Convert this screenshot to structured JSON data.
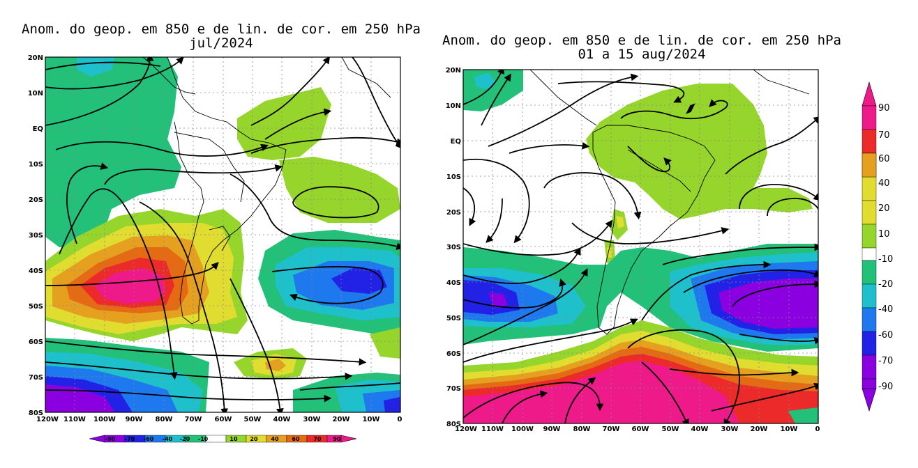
{
  "left_map": {
    "title_line1": "Anom. do geop. em 850 e de lin. de cor. em 250 hPa",
    "title_line2": "jul/2024",
    "lat_labels": [
      "20N",
      "10N",
      "EQ",
      "10S",
      "20S",
      "30S",
      "40S",
      "50S",
      "60S",
      "70S",
      "80S"
    ],
    "lon_labels": [
      "120W",
      "110W",
      "100W",
      "90W",
      "80W",
      "70W",
      "60W",
      "50W",
      "40W",
      "30W",
      "20W",
      "10W",
      "0"
    ],
    "colorbar_labels": [
      "-90",
      "-70",
      "-60",
      "-40",
      "-20",
      "-10",
      "10",
      "20",
      "40",
      "60",
      "70",
      "90"
    ]
  },
  "right_map": {
    "title_line1": "Anom. do geop. em 850 e de lin. de cor. em 250 hPa",
    "title_line2": "01 a 15 aug/2024",
    "lat_labels": [
      "20N",
      "10N",
      "EQ",
      "10S",
      "20S",
      "30S",
      "40S",
      "50S",
      "60S",
      "70S",
      "80S"
    ],
    "lon_labels": [
      "120W",
      "110W",
      "100W",
      "90W",
      "80W",
      "70W",
      "60W",
      "50W",
      "40W",
      "30W",
      "20W",
      "10W",
      "0"
    ],
    "colorbar_labels": [
      "90",
      "70",
      "60",
      "40",
      "20",
      "10",
      "-10",
      "-20",
      "-40",
      "-60",
      "-70",
      "-90"
    ]
  },
  "colors": {
    "m90": "#8a00e0",
    "m70": "#2222e6",
    "m60": "#1e78ee",
    "m40": "#1ec0cc",
    "m20": "#22c079",
    "m10": "#ffffff",
    "p10": "#96d62c",
    "p20": "#e0dc30",
    "p40": "#e6a020",
    "p60": "#e46a14",
    "p70": "#ec2a2a",
    "p90": "#ee1a8a"
  }
}
